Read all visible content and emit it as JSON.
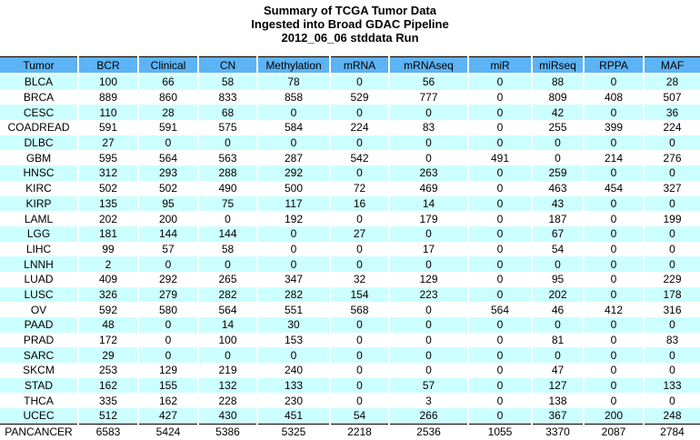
{
  "title": {
    "line1": "Summary of TCGA Tumor Data",
    "line2": "Ingested into Broad GDAC Pipeline",
    "line3": "2012_06_06 stddata Run"
  },
  "colors": {
    "header_bg": "#5CB3F5",
    "row_alt_bg": "#CCFFFF",
    "row_bg": "#FFFFFF",
    "rule": "#000000"
  },
  "chart_data": {
    "type": "table",
    "title": "Summary of TCGA Tumor Data Ingested into Broad GDAC Pipeline 2012_06_06 stddata Run",
    "columns": [
      "Tumor",
      "BCR",
      "Clinical",
      "CN",
      "Methylation",
      "mRNA",
      "mRNAseq",
      "miR",
      "miRseq",
      "RPPA",
      "MAF"
    ],
    "rows": [
      {
        "tumor": "BLCA",
        "values": [
          100,
          66,
          58,
          78,
          0,
          56,
          0,
          88,
          0,
          28
        ]
      },
      {
        "tumor": "BRCA",
        "values": [
          889,
          860,
          833,
          858,
          529,
          777,
          0,
          809,
          408,
          507
        ]
      },
      {
        "tumor": "CESC",
        "values": [
          110,
          28,
          68,
          0,
          0,
          0,
          0,
          42,
          0,
          36
        ]
      },
      {
        "tumor": "COADREAD",
        "values": [
          591,
          591,
          575,
          584,
          224,
          83,
          0,
          255,
          399,
          224
        ]
      },
      {
        "tumor": "DLBC",
        "values": [
          27,
          0,
          0,
          0,
          0,
          0,
          0,
          0,
          0,
          0
        ]
      },
      {
        "tumor": "GBM",
        "values": [
          595,
          564,
          563,
          287,
          542,
          0,
          491,
          0,
          214,
          276
        ]
      },
      {
        "tumor": "HNSC",
        "values": [
          312,
          293,
          288,
          292,
          0,
          263,
          0,
          259,
          0,
          0
        ]
      },
      {
        "tumor": "KIRC",
        "values": [
          502,
          502,
          490,
          500,
          72,
          469,
          0,
          463,
          454,
          327
        ]
      },
      {
        "tumor": "KIRP",
        "values": [
          135,
          95,
          75,
          117,
          16,
          14,
          0,
          43,
          0,
          0
        ]
      },
      {
        "tumor": "LAML",
        "values": [
          202,
          200,
          0,
          192,
          0,
          179,
          0,
          187,
          0,
          199
        ]
      },
      {
        "tumor": "LGG",
        "values": [
          181,
          144,
          144,
          0,
          27,
          0,
          0,
          67,
          0,
          0
        ]
      },
      {
        "tumor": "LIHC",
        "values": [
          99,
          57,
          58,
          0,
          0,
          17,
          0,
          54,
          0,
          0
        ]
      },
      {
        "tumor": "LNNH",
        "values": [
          2,
          0,
          0,
          0,
          0,
          0,
          0,
          0,
          0,
          0
        ]
      },
      {
        "tumor": "LUAD",
        "values": [
          409,
          292,
          265,
          347,
          32,
          129,
          0,
          95,
          0,
          229
        ]
      },
      {
        "tumor": "LUSC",
        "values": [
          326,
          279,
          282,
          282,
          154,
          223,
          0,
          202,
          0,
          178
        ]
      },
      {
        "tumor": "OV",
        "values": [
          592,
          580,
          564,
          551,
          568,
          0,
          564,
          46,
          412,
          316
        ]
      },
      {
        "tumor": "PAAD",
        "values": [
          48,
          0,
          14,
          30,
          0,
          0,
          0,
          0,
          0,
          0
        ]
      },
      {
        "tumor": "PRAD",
        "values": [
          172,
          0,
          100,
          153,
          0,
          0,
          0,
          81,
          0,
          83
        ]
      },
      {
        "tumor": "SARC",
        "values": [
          29,
          0,
          0,
          0,
          0,
          0,
          0,
          0,
          0,
          0
        ]
      },
      {
        "tumor": "SKCM",
        "values": [
          253,
          129,
          219,
          240,
          0,
          0,
          0,
          47,
          0,
          0
        ]
      },
      {
        "tumor": "STAD",
        "values": [
          162,
          155,
          132,
          133,
          0,
          57,
          0,
          127,
          0,
          133
        ]
      },
      {
        "tumor": "THCA",
        "values": [
          335,
          162,
          228,
          230,
          0,
          3,
          0,
          138,
          0,
          0
        ]
      },
      {
        "tumor": "UCEC",
        "values": [
          512,
          427,
          430,
          451,
          54,
          266,
          0,
          367,
          200,
          248
        ]
      },
      {
        "tumor": "PANCANCER",
        "values": [
          6583,
          5424,
          5386,
          5325,
          2218,
          2536,
          1055,
          3370,
          2087,
          2784
        ]
      }
    ]
  }
}
